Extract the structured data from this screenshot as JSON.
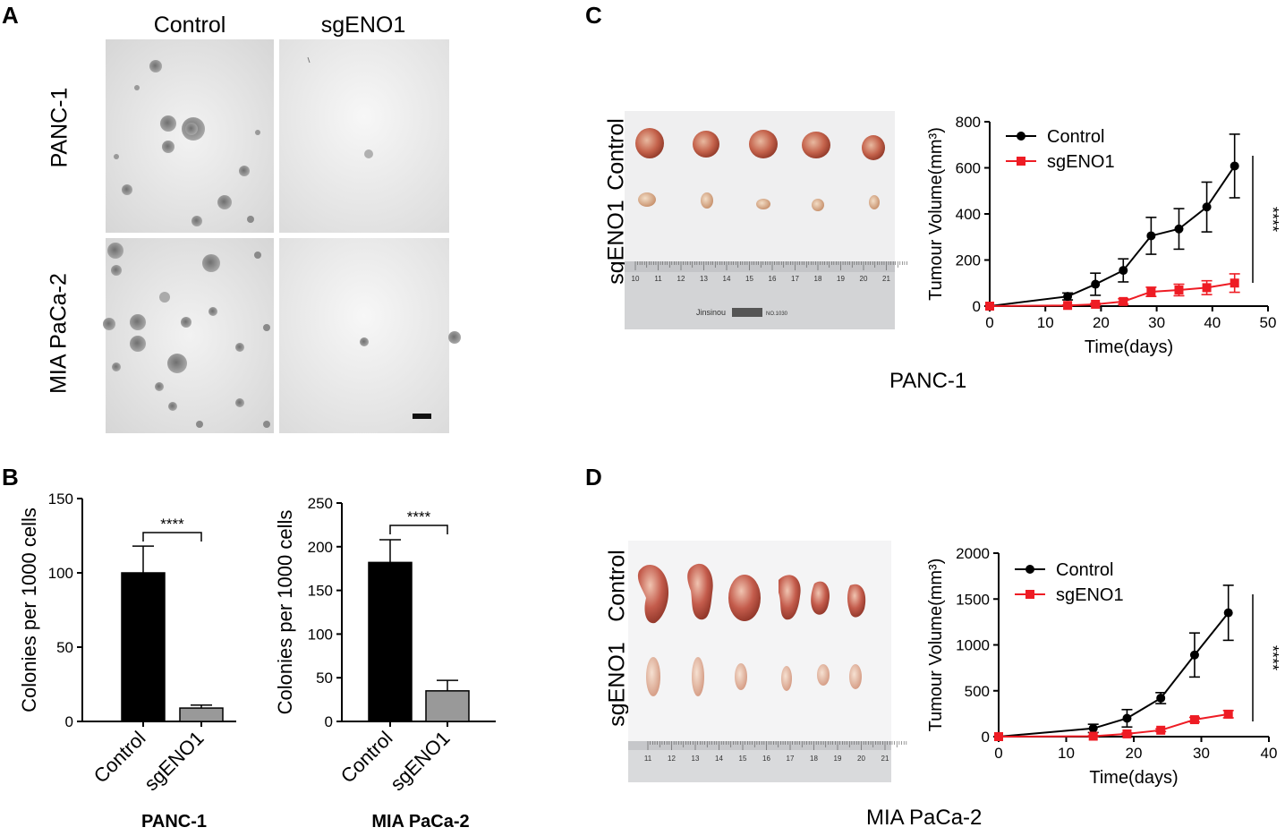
{
  "panels": {
    "A": {
      "letter": "A",
      "col_headers": [
        "Control",
        "sgENO1"
      ],
      "row_labels": [
        "PANC-1",
        "MIA PaCa-2"
      ]
    },
    "B": {
      "letter": "B",
      "significance": "****"
    },
    "C": {
      "letter": "C",
      "photo_row_labels": [
        "Control",
        "sgENO1"
      ],
      "ruler_ticks": [
        "10",
        "11",
        "12",
        "13",
        "14",
        "15",
        "16",
        "17",
        "18",
        "19",
        "20",
        "21"
      ],
      "ruler_brand": "Jinsinou",
      "ruler_model": "NO.1030",
      "caption": "PANC-1",
      "significance": "****"
    },
    "D": {
      "letter": "D",
      "photo_row_labels": [
        "Control",
        "sgENO1"
      ],
      "ruler_ticks": [
        "11",
        "12",
        "13",
        "14",
        "15",
        "16",
        "17",
        "18",
        "19",
        "20",
        "21"
      ],
      "caption": "MIA PaCa-2",
      "significance": "****"
    }
  },
  "chart_data": [
    {
      "id": "B1",
      "type": "bar",
      "categories": [
        "Control",
        "sgENO1"
      ],
      "values": [
        100,
        9
      ],
      "errors": [
        18,
        2
      ],
      "colors": [
        "#000000",
        "#999999"
      ],
      "ylabel": "Colonies per 1000 cells",
      "xlabel": "PANC-1",
      "ylim": [
        0,
        150
      ],
      "yticks": [
        "0",
        "50",
        "100",
        "150"
      ],
      "significance": "****"
    },
    {
      "id": "B2",
      "type": "bar",
      "categories": [
        "Control",
        "sgENO1"
      ],
      "values": [
        182,
        35
      ],
      "errors": [
        26,
        12
      ],
      "colors": [
        "#000000",
        "#999999"
      ],
      "ylabel": "Colonies per 1000 cells",
      "xlabel": "MIA PaCa-2",
      "ylim": [
        0,
        250
      ],
      "yticks": [
        "0",
        "50",
        "100",
        "150",
        "200",
        "250"
      ],
      "significance": "****"
    },
    {
      "id": "C",
      "type": "line",
      "ylabel": "Tumour Volume(mm³)",
      "xlabel": "Time(days)",
      "xlim": [
        0,
        50
      ],
      "ylim": [
        0,
        800
      ],
      "xticks": [
        "0",
        "10",
        "20",
        "30",
        "40",
        "50"
      ],
      "yticks": [
        "0",
        "200",
        "400",
        "600",
        "800"
      ],
      "legend": "top-left",
      "series": [
        {
          "name": "Control",
          "color": "#000000",
          "marker": "circle",
          "x": [
            0,
            14,
            19,
            24,
            29,
            34,
            39,
            44
          ],
          "y": [
            0,
            42,
            95,
            155,
            305,
            335,
            430,
            608
          ],
          "err": [
            0,
            15,
            48,
            50,
            80,
            88,
            108,
            138
          ]
        },
        {
          "name": "sgENO1",
          "color": "#ee1c24",
          "marker": "square",
          "x": [
            0,
            14,
            19,
            24,
            29,
            34,
            39,
            44
          ],
          "y": [
            0,
            3,
            8,
            20,
            62,
            70,
            80,
            100
          ],
          "err": [
            0,
            2,
            4,
            12,
            20,
            25,
            30,
            40
          ]
        }
      ],
      "significance": "****"
    },
    {
      "id": "D",
      "type": "line",
      "ylabel": "Tumour Volume(mm³)",
      "xlabel": "Time(days)",
      "xlim": [
        0,
        40
      ],
      "ylim": [
        0,
        2000
      ],
      "xticks": [
        "0",
        "10",
        "20",
        "30",
        "40"
      ],
      "yticks": [
        "0",
        "500",
        "1000",
        "1500",
        "2000"
      ],
      "legend": "top-left",
      "series": [
        {
          "name": "Control",
          "color": "#000000",
          "marker": "circle",
          "x": [
            0,
            14,
            19,
            24,
            29,
            34
          ],
          "y": [
            0,
            90,
            200,
            420,
            890,
            1350
          ],
          "err": [
            0,
            45,
            95,
            60,
            240,
            300
          ]
        },
        {
          "name": "sgENO1",
          "color": "#ee1c24",
          "marker": "square",
          "x": [
            0,
            14,
            19,
            24,
            29,
            34
          ],
          "y": [
            0,
            5,
            30,
            70,
            185,
            245
          ],
          "err": [
            0,
            5,
            10,
            15,
            25,
            40
          ]
        }
      ],
      "significance": "****"
    }
  ]
}
